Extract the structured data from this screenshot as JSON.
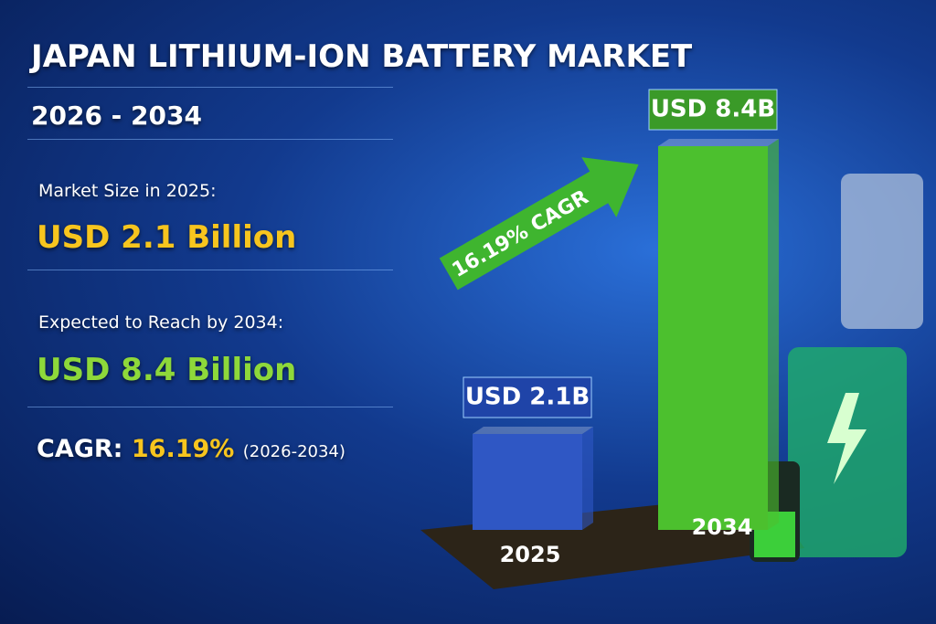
{
  "panel": {
    "market_label": "Market Size in 2025:",
    "market_value": "USD 2.1 Billion",
    "expected_label": "Expected to Reach by 2034:",
    "expected_value": "USD 8.4 Billion",
    "cagr_label": "CAGR:",
    "cagr_value": "16.19%",
    "cagr_period": "(2026-2034)"
  },
  "chart_data": {
    "type": "bar",
    "title": "JAPAN LITHIUM-ION BATTERY MARKET",
    "subtitle": "2026 - 2034",
    "categories": [
      "2025",
      "2034"
    ],
    "values": [
      2.1,
      8.4
    ],
    "value_labels": [
      "USD 2.1B",
      "USD 8.4B"
    ],
    "colors": [
      "#2f57c4",
      "#4cc02e"
    ],
    "annotations": [
      "16.19% CAGR"
    ]
  }
}
